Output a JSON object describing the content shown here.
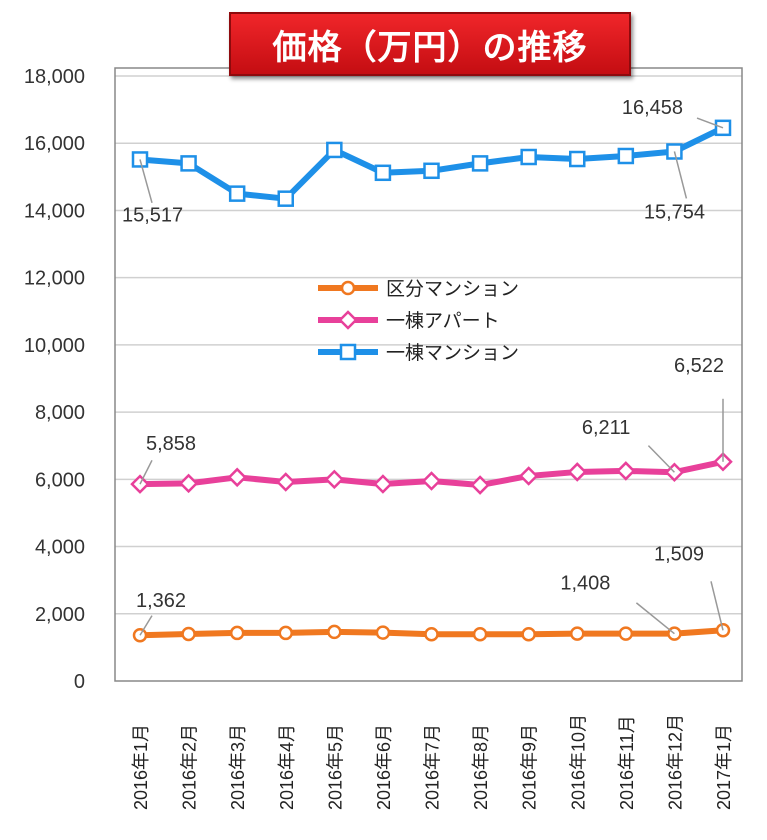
{
  "chart_data": {
    "type": "line",
    "title": "価格（万円）の推移",
    "xlabel": "",
    "ylabel": "",
    "ylim": [
      0,
      18000
    ],
    "yticks": [
      "0",
      "2,000",
      "4,000",
      "6,000",
      "8,000",
      "10,000",
      "12,000",
      "14,000",
      "16,000",
      "18,000"
    ],
    "grid": true,
    "legend_position": "center",
    "categories": [
      "2016年1月",
      "2016年2月",
      "2016年3月",
      "2016年4月",
      "2016年5月",
      "2016年6月",
      "2016年7月",
      "2016年8月",
      "2016年9月",
      "2016年10月",
      "2016年11月",
      "2016年12月",
      "2017年1月"
    ],
    "series": [
      {
        "name": "区分マンション",
        "color": "#f07820",
        "marker": "circle",
        "values": [
          1362,
          1400,
          1430,
          1430,
          1460,
          1440,
          1390,
          1390,
          1390,
          1410,
          1410,
          1408,
          1509
        ]
      },
      {
        "name": "一棟アパート",
        "color": "#e8409a",
        "marker": "diamond",
        "values": [
          5858,
          5880,
          6060,
          5920,
          6000,
          5860,
          5950,
          5830,
          6100,
          6220,
          6250,
          6211,
          6522
        ]
      },
      {
        "name": "一棟マンション",
        "color": "#1e90e8",
        "marker": "square",
        "values": [
          15517,
          15400,
          14500,
          14350,
          15800,
          15120,
          15180,
          15400,
          15590,
          15530,
          15620,
          15754,
          16458
        ]
      }
    ],
    "data_labels": [
      {
        "series": 0,
        "index": 0,
        "text": "1,362"
      },
      {
        "series": 0,
        "index": 11,
        "text": "1,408"
      },
      {
        "series": 0,
        "index": 12,
        "text": "1,509"
      },
      {
        "series": 1,
        "index": 0,
        "text": "5,858"
      },
      {
        "series": 1,
        "index": 11,
        "text": "6,211"
      },
      {
        "series": 1,
        "index": 12,
        "text": "6,522"
      },
      {
        "series": 2,
        "index": 0,
        "text": "15,517"
      },
      {
        "series": 2,
        "index": 11,
        "text": "15,754"
      },
      {
        "series": 2,
        "index": 12,
        "text": "16,458"
      }
    ]
  }
}
